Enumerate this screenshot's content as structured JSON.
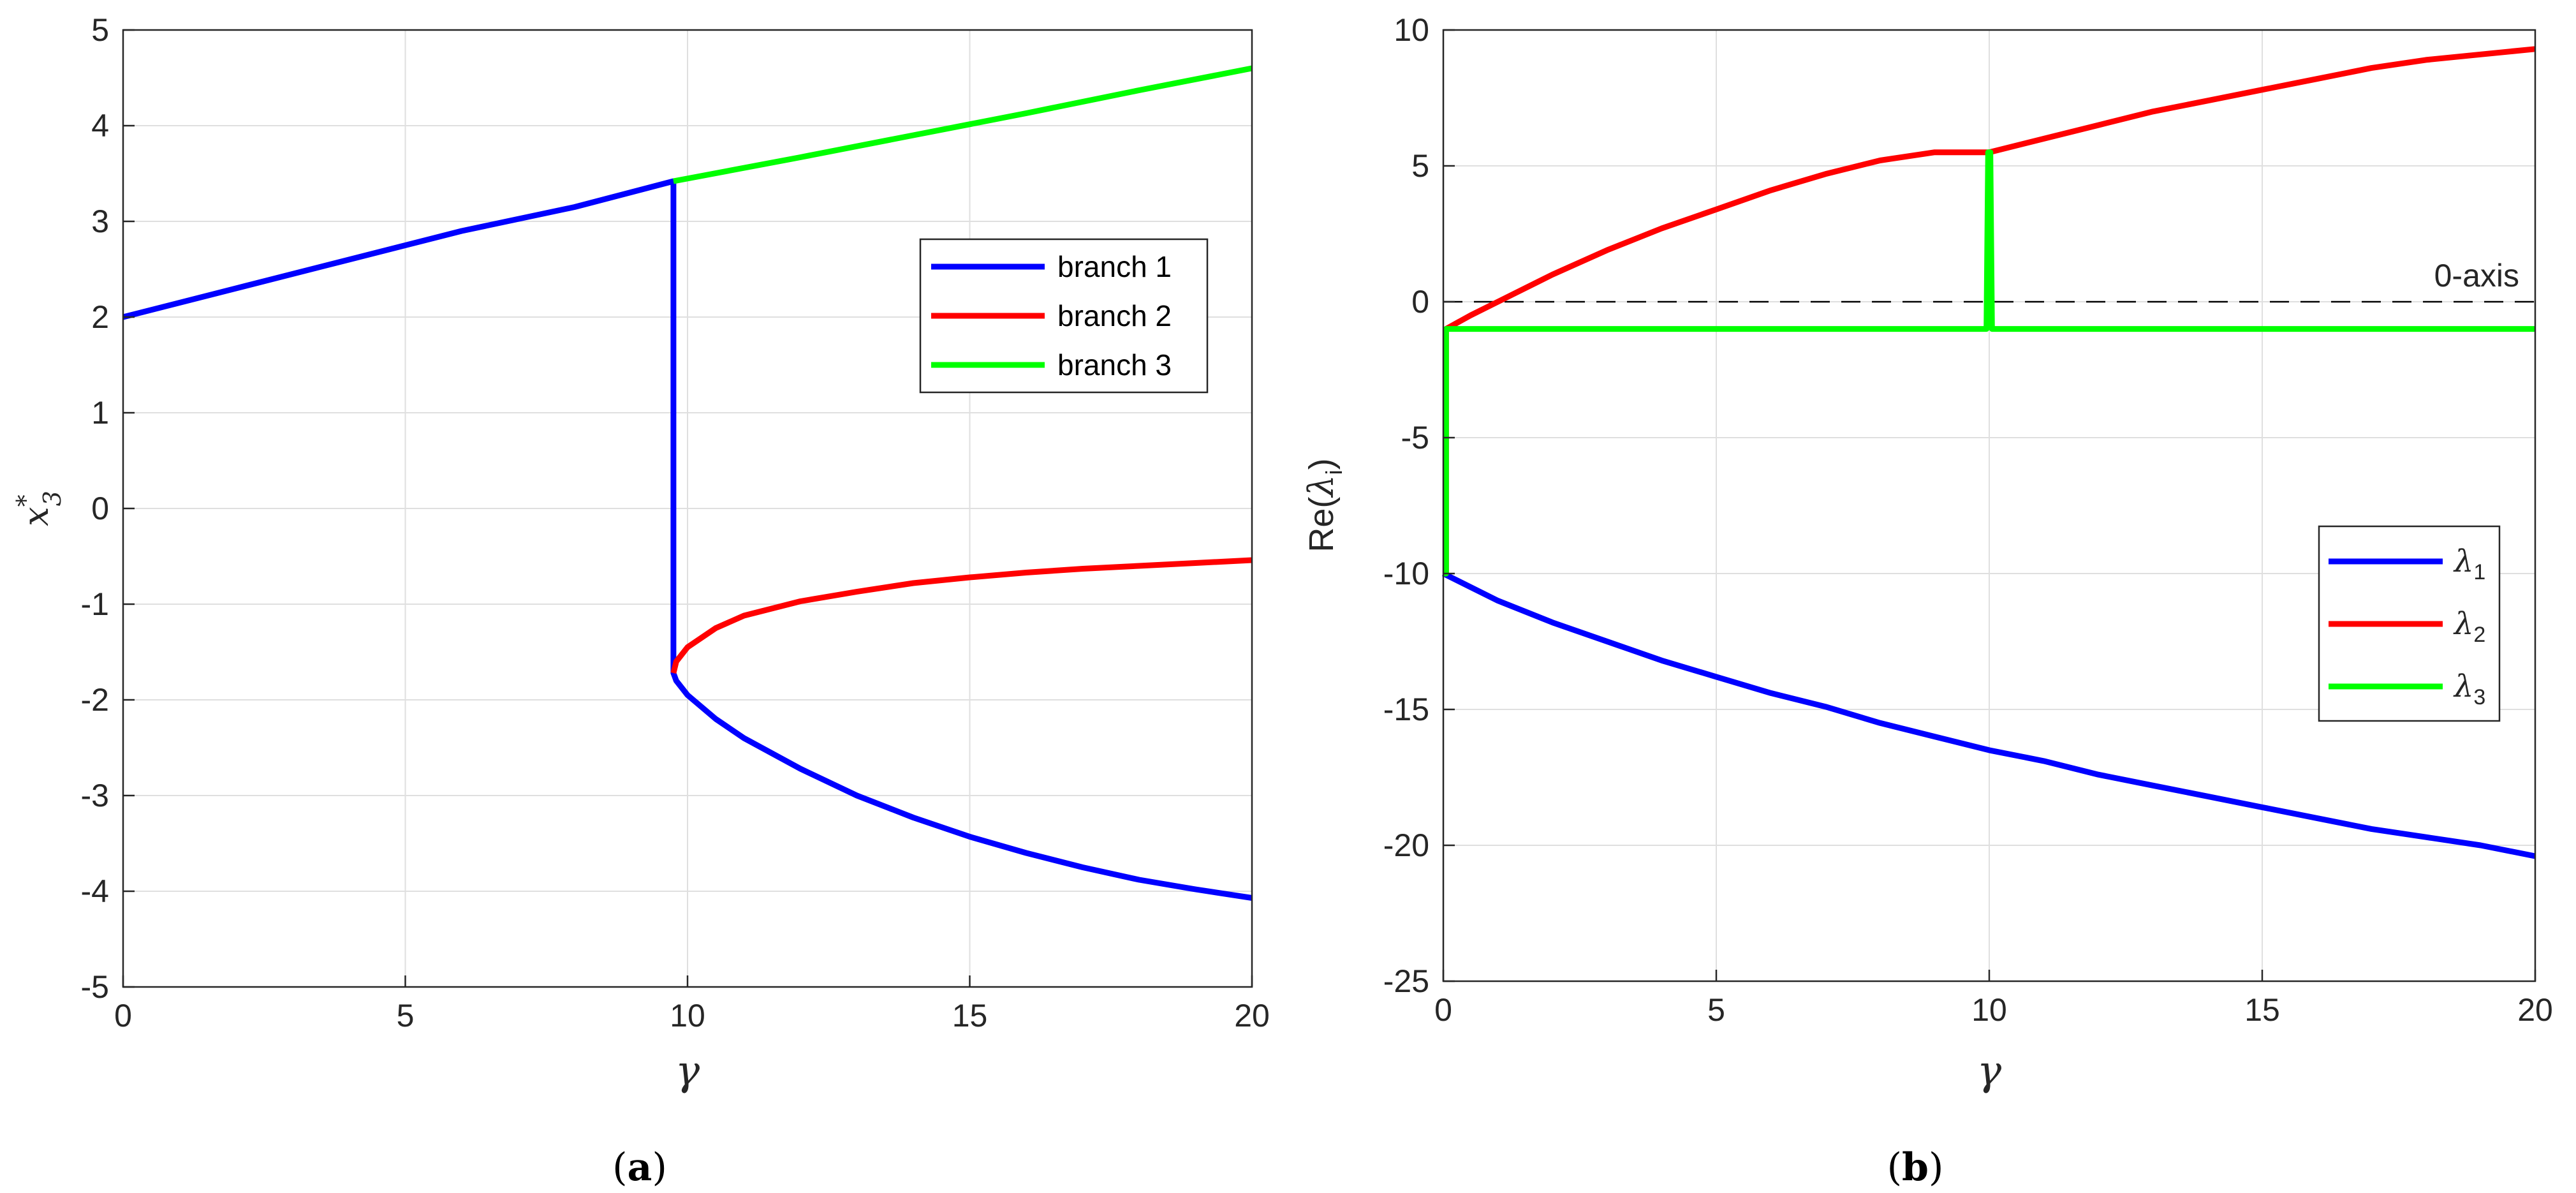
{
  "chart_data": [
    {
      "type": "line",
      "panel": "a",
      "caption": {
        "open": "(",
        "letter": "a",
        "close": ")"
      },
      "xlabel": "γ",
      "ylabel": {
        "base": "x",
        "sup": "*",
        "sub": "3"
      },
      "xlim": [
        0,
        20
      ],
      "ylim": [
        -5,
        5
      ],
      "xticks": [
        0,
        5,
        10,
        15,
        20
      ],
      "yticks": [
        -5,
        -4,
        -3,
        -2,
        -1,
        0,
        1,
        2,
        3,
        4,
        5
      ],
      "grid": true,
      "legend_position": "right-center",
      "colors": {
        "branch1": "#0000ff",
        "branch2": "#ff0000",
        "branch3": "#00ff00"
      },
      "series": [
        {
          "name": "branch 1",
          "color": "#0000ff",
          "x": [
            0,
            2,
            4,
            6,
            8,
            9.75,
            9.75,
            9.8,
            10,
            10.5,
            11,
            12,
            13,
            14,
            15,
            16,
            17,
            18,
            19,
            20
          ],
          "y": [
            2.0,
            2.3,
            2.6,
            2.9,
            3.15,
            3.42,
            -1.72,
            -1.8,
            -1.95,
            -2.2,
            -2.4,
            -2.72,
            -3.0,
            -3.23,
            -3.43,
            -3.6,
            -3.75,
            -3.88,
            -3.98,
            -4.07
          ]
        },
        {
          "name": "branch 2",
          "color": "#ff0000",
          "x": [
            9.75,
            9.8,
            10,
            10.5,
            11,
            12,
            13,
            14,
            15,
            16,
            17,
            18,
            19,
            20
          ],
          "y": [
            -1.72,
            -1.6,
            -1.45,
            -1.25,
            -1.12,
            -0.97,
            -0.87,
            -0.78,
            -0.72,
            -0.67,
            -0.63,
            -0.6,
            -0.57,
            -0.54
          ]
        },
        {
          "name": "branch 3",
          "color": "#00ff00",
          "x": [
            9.75,
            12,
            14,
            16,
            18,
            20
          ],
          "y": [
            3.42,
            3.67,
            3.9,
            4.13,
            4.37,
            4.6
          ]
        }
      ]
    },
    {
      "type": "line",
      "panel": "b",
      "caption": {
        "open": "(",
        "letter": "b",
        "close": ")"
      },
      "xlabel": "γ",
      "ylabel": {
        "pre": "Re(",
        "sym": "λ",
        "sub": "i",
        "post": ")"
      },
      "xlim": [
        0,
        20
      ],
      "ylim": [
        -25,
        10
      ],
      "xticks": [
        0,
        5,
        10,
        15,
        20
      ],
      "yticks": [
        -25,
        -20,
        -15,
        -10,
        -5,
        0,
        5,
        10
      ],
      "grid": true,
      "legend_position": "bottom-right",
      "annotation": {
        "text": "0-axis",
        "y": 0,
        "style": "dashed"
      },
      "colors": {
        "lambda1": "#0000ff",
        "lambda2": "#ff0000",
        "lambda3": "#00ff00"
      },
      "series": [
        {
          "name": {
            "sym": "λ",
            "sub": "1"
          },
          "color": "#0000ff",
          "x": [
            0,
            0.5,
            1,
            2,
            3,
            4,
            5,
            6,
            7,
            8,
            9,
            10,
            11,
            12,
            13,
            14,
            15,
            16,
            17,
            18,
            19,
            20
          ],
          "y": [
            -10,
            -10.5,
            -11,
            -11.8,
            -12.5,
            -13.2,
            -13.8,
            -14.4,
            -14.9,
            -15.5,
            -16.0,
            -16.5,
            -16.9,
            -17.4,
            -17.8,
            -18.2,
            -18.6,
            -19.0,
            -19.4,
            -19.7,
            -20.0,
            -20.4
          ]
        },
        {
          "name": {
            "sym": "λ",
            "sub": "2"
          },
          "color": "#ff0000",
          "x": [
            0,
            0.05,
            0.05,
            0.5,
            1,
            2,
            3,
            4,
            5,
            6,
            7,
            8,
            9,
            10,
            11,
            12,
            13,
            14,
            15,
            16,
            17,
            18,
            19,
            20
          ],
          "y": [
            -10,
            -10,
            -1,
            -0.5,
            0,
            1,
            1.9,
            2.7,
            3.4,
            4.1,
            4.7,
            5.2,
            5.5,
            5.5,
            6.0,
            6.5,
            7.0,
            7.4,
            7.8,
            8.2,
            8.6,
            8.9,
            9.1,
            9.3
          ]
        },
        {
          "name": {
            "sym": "λ",
            "sub": "3"
          },
          "color": "#00ff00",
          "x": [
            0,
            0.05,
            0.05,
            9.95,
            9.98,
            10.02,
            10.05,
            20
          ],
          "y": [
            -10,
            -10,
            -1,
            -1,
            5.5,
            5.5,
            -1,
            -1
          ]
        }
      ]
    }
  ]
}
